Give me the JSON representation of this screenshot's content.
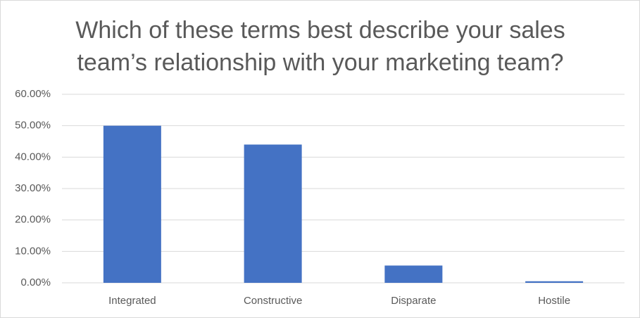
{
  "chart_data": {
    "type": "bar",
    "title": "Which of these terms best describe your sales team’s relationship with your marketing team?",
    "categories": [
      "Integrated",
      "Constructive",
      "Disparate",
      "Hostile"
    ],
    "values": [
      50.0,
      44.0,
      5.5,
      0.5
    ],
    "color": "#4472c4",
    "ylim": [
      0,
      60
    ],
    "yticks": [
      {
        "value": 0,
        "label": "0.00%"
      },
      {
        "value": 10,
        "label": "10.00%"
      },
      {
        "value": 20,
        "label": "20.00%"
      },
      {
        "value": 30,
        "label": "30.00%"
      },
      {
        "value": 40,
        "label": "40.00%"
      },
      {
        "value": 50,
        "label": "50.00%"
      },
      {
        "value": 60,
        "label": "60.00%"
      }
    ],
    "grid": true
  }
}
